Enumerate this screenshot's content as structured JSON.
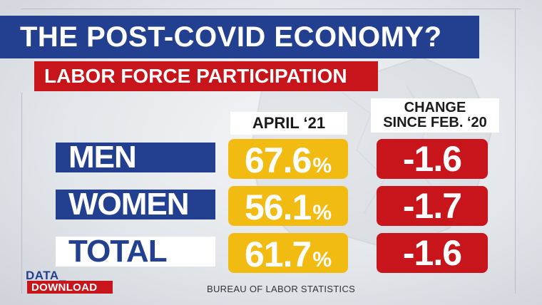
{
  "title": "THE POST-COVID ECONOMY?",
  "subtitle": "LABOR FORCE PARTICIPATION",
  "columns": {
    "current": "APRIL ‘21",
    "change_line1": "CHANGE",
    "change_line2": "SINCE FEB. ‘20"
  },
  "rows": [
    {
      "label": "MEN",
      "value": "67.6",
      "unit": "%",
      "change": "-1.6"
    },
    {
      "label": "WOMEN",
      "value": "56.1",
      "unit": "%",
      "change": "-1.7"
    },
    {
      "label": "TOTAL",
      "value": "61.7",
      "unit": "%",
      "change": "-1.6"
    }
  ],
  "logo": {
    "top": "DATA_",
    "bottom": "DOWNLOAD"
  },
  "source": "BUREAU OF LABOR STATISTICS",
  "colors": {
    "navy": "#233f8f",
    "red": "#c8151b",
    "gold": "#f2bb11",
    "white": "#ffffff"
  }
}
